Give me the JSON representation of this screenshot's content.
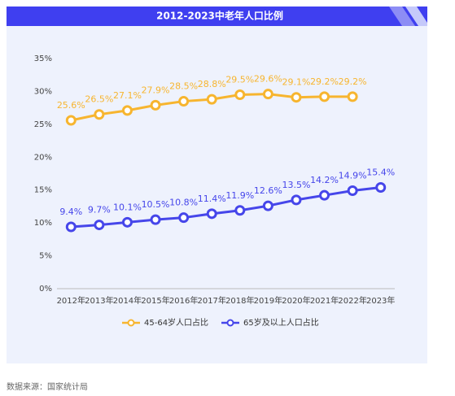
{
  "chart_data": {
    "type": "line",
    "title": "2012-2023中老年人口比例",
    "categories": [
      "2012年",
      "2013年",
      "2014年",
      "2015年",
      "2016年",
      "2017年",
      "2018年",
      "2019年",
      "2020年",
      "2021年",
      "2022年",
      "2023年"
    ],
    "series": [
      {
        "name": "45-64岁人口占比",
        "color": "#f7b52f",
        "values": [
          25.6,
          26.5,
          27.1,
          27.9,
          28.5,
          28.8,
          29.5,
          29.6,
          29.1,
          29.2,
          29.2,
          null
        ],
        "value_labels": [
          "25.6%",
          "26.5%",
          "27.1%",
          "27.9%",
          "28.5%",
          "28.8%",
          "29.5%",
          "29.6%",
          "29.1%",
          "29.2%",
          "29.2%",
          null
        ]
      },
      {
        "name": "65岁及以上人口占比",
        "color": "#4646ea",
        "values": [
          9.4,
          9.7,
          10.1,
          10.5,
          10.8,
          11.4,
          11.9,
          12.6,
          13.5,
          14.2,
          14.9,
          15.4
        ],
        "value_labels": [
          "9.4%",
          "9.7%",
          "10.1%",
          "10.5%",
          "10.8%",
          "11.4%",
          "11.9%",
          "12.6%",
          "13.5%",
          "14.2%",
          "14.9%",
          "15.4%"
        ]
      }
    ],
    "ylim": [
      0,
      35
    ],
    "yticks": [
      {
        "value": 0,
        "label": "0%"
      },
      {
        "value": 5,
        "label": "5%"
      },
      {
        "value": 10,
        "label": "10%"
      },
      {
        "value": 15,
        "label": "15%"
      },
      {
        "value": 20,
        "label": "20%"
      },
      {
        "value": 25,
        "label": "25%"
      },
      {
        "value": 30,
        "label": "30%"
      },
      {
        "value": 35,
        "label": "35%"
      }
    ],
    "legend": "bottom"
  },
  "source": "数据来源：国家统计局"
}
